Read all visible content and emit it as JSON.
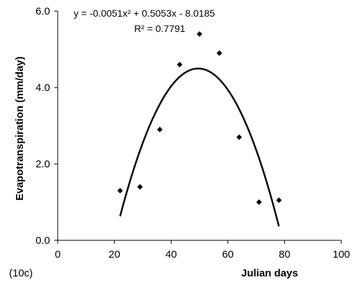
{
  "chart_data": {
    "type": "scatter",
    "title": "",
    "xlabel": "Julian days",
    "ylabel": "Evapotranspiration (mm/day)",
    "xlim": [
      0,
      100
    ],
    "ylim": [
      0.0,
      6.0
    ],
    "x_ticks": [
      "0",
      "20",
      "40",
      "60",
      "80",
      "100"
    ],
    "y_ticks": [
      "0.0",
      "2.0",
      "4.0",
      "6.0"
    ],
    "x_tick_values": [
      0,
      20,
      40,
      60,
      80,
      100
    ],
    "y_tick_values": [
      0,
      2,
      4,
      6
    ],
    "grid": false,
    "legend": "none",
    "series": [
      {
        "kind": "points",
        "marker": "diamond",
        "x": [
          22,
          29,
          36,
          43,
          50,
          57,
          64,
          71,
          78
        ],
        "y": [
          1.3,
          1.4,
          2.9,
          4.6,
          5.4,
          4.9,
          2.7,
          1.0,
          1.05
        ]
      },
      {
        "kind": "trendline",
        "fit": "polynomial-2",
        "coefficients": [
          -0.0051,
          0.5053,
          -8.0185
        ],
        "x_range": [
          22,
          78
        ]
      }
    ],
    "annotations": {
      "equation": "y = -0.0051x² + 0.5053x - 8.0185",
      "r_squared": "R² = 0.7791",
      "panel": "(10c)"
    },
    "colors": {
      "marker": "#000000",
      "trendline": "#000000",
      "axes": "#000000"
    }
  }
}
